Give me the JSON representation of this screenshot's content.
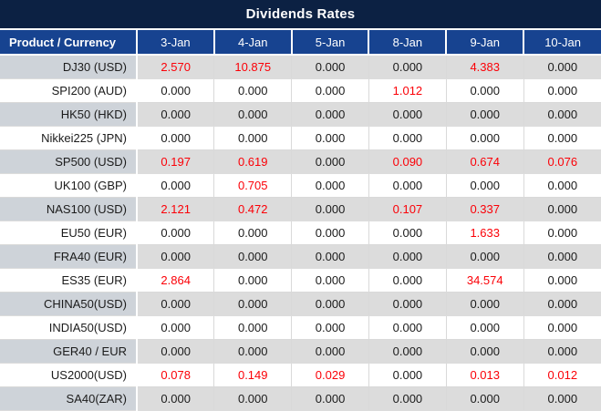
{
  "title": "Dividends Rates",
  "table": {
    "product_header": "Product / Currency",
    "date_headers": [
      "3-Jan",
      "4-Jan",
      "5-Jan",
      "8-Jan",
      "9-Jan",
      "10-Jan"
    ],
    "rows": [
      {
        "product": "DJ30 (USD)",
        "values": [
          "2.570",
          "10.875",
          "0.000",
          "0.000",
          "4.383",
          "0.000"
        ]
      },
      {
        "product": "SPI200 (AUD)",
        "values": [
          "0.000",
          "0.000",
          "0.000",
          "1.012",
          "0.000",
          "0.000"
        ]
      },
      {
        "product": "HK50 (HKD)",
        "values": [
          "0.000",
          "0.000",
          "0.000",
          "0.000",
          "0.000",
          "0.000"
        ]
      },
      {
        "product": "Nikkei225 (JPN)",
        "values": [
          "0.000",
          "0.000",
          "0.000",
          "0.000",
          "0.000",
          "0.000"
        ]
      },
      {
        "product": "SP500 (USD)",
        "values": [
          "0.197",
          "0.619",
          "0.000",
          "0.090",
          "0.674",
          "0.076"
        ]
      },
      {
        "product": "UK100 (GBP)",
        "values": [
          "0.000",
          "0.705",
          "0.000",
          "0.000",
          "0.000",
          "0.000"
        ]
      },
      {
        "product": "NAS100 (USD)",
        "values": [
          "2.121",
          "0.472",
          "0.000",
          "0.107",
          "0.337",
          "0.000"
        ]
      },
      {
        "product": "EU50 (EUR)",
        "values": [
          "0.000",
          "0.000",
          "0.000",
          "0.000",
          "1.633",
          "0.000"
        ]
      },
      {
        "product": "FRA40 (EUR)",
        "values": [
          "0.000",
          "0.000",
          "0.000",
          "0.000",
          "0.000",
          "0.000"
        ]
      },
      {
        "product": "ES35 (EUR)",
        "values": [
          "2.864",
          "0.000",
          "0.000",
          "0.000",
          "34.574",
          "0.000"
        ]
      },
      {
        "product": "CHINA50(USD)",
        "values": [
          "0.000",
          "0.000",
          "0.000",
          "0.000",
          "0.000",
          "0.000"
        ]
      },
      {
        "product": "INDIA50(USD)",
        "values": [
          "0.000",
          "0.000",
          "0.000",
          "0.000",
          "0.000",
          "0.000"
        ]
      },
      {
        "product": "GER40 / EUR",
        "values": [
          "0.000",
          "0.000",
          "0.000",
          "0.000",
          "0.000",
          "0.000"
        ]
      },
      {
        "product": "US2000(USD)",
        "values": [
          "0.078",
          "0.149",
          "0.029",
          "0.000",
          "0.013",
          "0.012"
        ]
      },
      {
        "product": "SA40(ZAR)",
        "values": [
          "0.000",
          "0.000",
          "0.000",
          "0.000",
          "0.000",
          "0.000"
        ]
      }
    ]
  },
  "colors": {
    "title_bg": "#0c2143",
    "header_bg": "#174390",
    "row_alt_bg": "#dcdcdc",
    "product_alt_bg": "#ced3d9",
    "nonzero_text": "#fb0007",
    "zero_text": "#1b1b1b",
    "gridline": "#d9d9d9"
  },
  "chart_data": {
    "type": "table",
    "title": "Dividends Rates",
    "columns": [
      "Product / Currency",
      "3-Jan",
      "4-Jan",
      "5-Jan",
      "8-Jan",
      "9-Jan",
      "10-Jan"
    ],
    "rows": [
      [
        "DJ30 (USD)",
        2.57,
        10.875,
        0.0,
        0.0,
        4.383,
        0.0
      ],
      [
        "SPI200 (AUD)",
        0.0,
        0.0,
        0.0,
        1.012,
        0.0,
        0.0
      ],
      [
        "HK50 (HKD)",
        0.0,
        0.0,
        0.0,
        0.0,
        0.0,
        0.0
      ],
      [
        "Nikkei225 (JPN)",
        0.0,
        0.0,
        0.0,
        0.0,
        0.0,
        0.0
      ],
      [
        "SP500 (USD)",
        0.197,
        0.619,
        0.0,
        0.09,
        0.674,
        0.076
      ],
      [
        "UK100 (GBP)",
        0.0,
        0.705,
        0.0,
        0.0,
        0.0,
        0.0
      ],
      [
        "NAS100 (USD)",
        2.121,
        0.472,
        0.0,
        0.107,
        0.337,
        0.0
      ],
      [
        "EU50 (EUR)",
        0.0,
        0.0,
        0.0,
        0.0,
        1.633,
        0.0
      ],
      [
        "FRA40 (EUR)",
        0.0,
        0.0,
        0.0,
        0.0,
        0.0,
        0.0
      ],
      [
        "ES35 (EUR)",
        2.864,
        0.0,
        0.0,
        0.0,
        34.574,
        0.0
      ],
      [
        "CHINA50(USD)",
        0.0,
        0.0,
        0.0,
        0.0,
        0.0,
        0.0
      ],
      [
        "INDIA50(USD)",
        0.0,
        0.0,
        0.0,
        0.0,
        0.0,
        0.0
      ],
      [
        "GER40 / EUR",
        0.0,
        0.0,
        0.0,
        0.0,
        0.0,
        0.0
      ],
      [
        "US2000(USD)",
        0.078,
        0.149,
        0.029,
        0.0,
        0.013,
        0.012
      ],
      [
        "SA40(ZAR)",
        0.0,
        0.0,
        0.0,
        0.0,
        0.0,
        0.0
      ]
    ],
    "layout": {
      "value_format": "3 decimal places",
      "nonzero_values_color": "#fb0007",
      "alternating_row_shading": true,
      "header_position": "top"
    }
  }
}
